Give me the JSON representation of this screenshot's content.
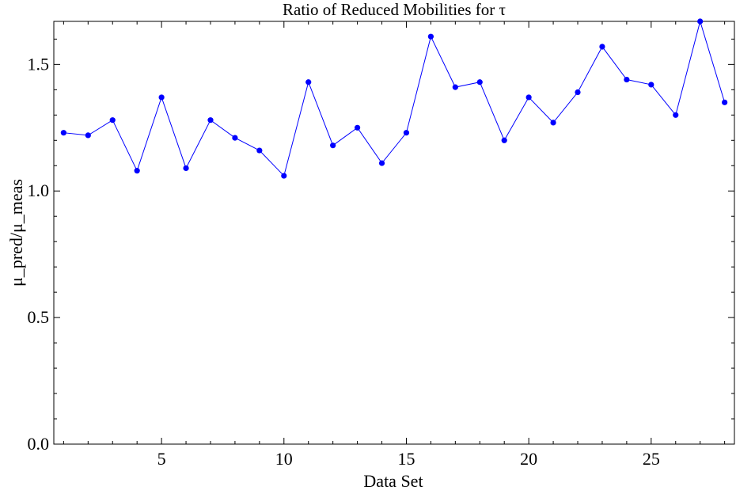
{
  "chart_data": {
    "type": "line",
    "title": "Ratio of Reduced Mobilities for τ",
    "xlabel": "Data Set",
    "ylabel": "μ_pred/μ_meas",
    "xlim": [
      0.6,
      28.4
    ],
    "ylim": [
      0.0,
      1.67
    ],
    "x_ticks": [
      5,
      10,
      15,
      20,
      25
    ],
    "x_tick_labels": [
      "5",
      "10",
      "15",
      "20",
      "25"
    ],
    "y_ticks": [
      0.0,
      0.5,
      1.0,
      1.5
    ],
    "y_tick_labels": [
      "0.0",
      "0.5",
      "1.0",
      "1.5"
    ],
    "grid": false,
    "series": [
      {
        "color": "#0000ff",
        "x": [
          1,
          2,
          3,
          4,
          5,
          6,
          7,
          8,
          9,
          10,
          11,
          12,
          13,
          14,
          15,
          16,
          17,
          18,
          19,
          20,
          21,
          22,
          23,
          24,
          25,
          26,
          27,
          28
        ],
        "values": [
          1.23,
          1.22,
          1.28,
          1.08,
          1.37,
          1.09,
          1.28,
          1.21,
          1.16,
          1.06,
          1.43,
          1.18,
          1.25,
          1.11,
          1.23,
          1.61,
          1.41,
          1.43,
          1.2,
          1.37,
          1.27,
          1.39,
          1.57,
          1.44,
          1.42,
          1.3,
          1.67,
          1.35
        ]
      }
    ]
  }
}
